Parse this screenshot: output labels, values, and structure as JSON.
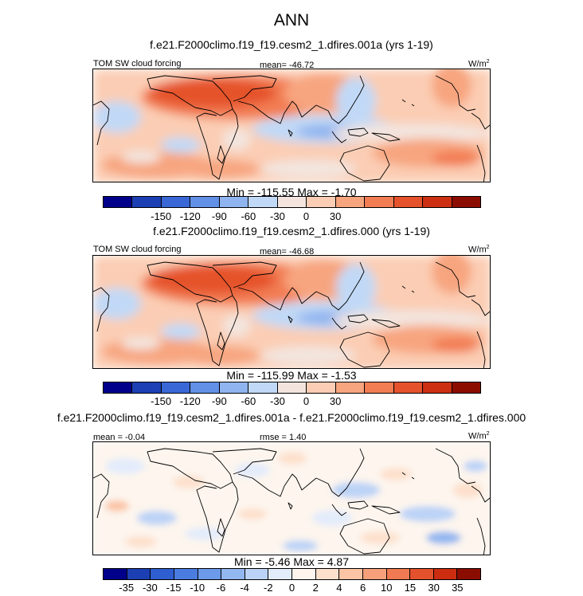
{
  "figure": {
    "title": "ANN"
  },
  "panels": [
    {
      "title": "f.e21.F2000climo.f19_f19.cesm2_1.dfires.001a (yrs 1-19)",
      "left_label": "TOM SW cloud forcing",
      "center_label": "mean= -46.72",
      "units": "W/m",
      "units_sup": "2",
      "minmax": "Min = -115.55 Max =  -1.70",
      "tick_labels": [
        "-150",
        "-120",
        "-90",
        "-60",
        "-30",
        "0",
        "30"
      ]
    },
    {
      "title": "f.e21.F2000climo.f19_f19.cesm2_1.dfires.000 (yrs 1-19)",
      "left_label": "TOM SW cloud forcing",
      "center_label": "mean= -46.68",
      "units": "W/m",
      "units_sup": "2",
      "minmax": "Min = -115.99 Max =  -1.53",
      "tick_labels": [
        "-150",
        "-120",
        "-90",
        "-60",
        "-30",
        "0",
        "30"
      ]
    },
    {
      "title": "f.e21.F2000climo.f19_f19.cesm2_1.dfires.001a - f.e21.F2000climo.f19_f19.cesm2_1.dfires.000",
      "left_label": "mean = -0.04",
      "center_label": "rmse =  1.40",
      "units": "W/m",
      "units_sup": "2",
      "minmax": "Min =  -5.46 Max =   4.87",
      "tick_labels": [
        "-35",
        "-30",
        "-15",
        "-10",
        "-6",
        "-4",
        "-2",
        "0",
        "2",
        "4",
        "6",
        "10",
        "15",
        "30",
        "35"
      ]
    }
  ],
  "colorbars": {
    "field": [
      "#00008b",
      "#1c3fb3",
      "#3a67d6",
      "#6190e6",
      "#90b4ef",
      "#c1d9f6",
      "#f3e5de",
      "#fbcdb4",
      "#f7a57f",
      "#f27d53",
      "#e5522c",
      "#cc2f12",
      "#8b0d00"
    ],
    "diff": [
      "#00008b",
      "#1c3fb3",
      "#2f5ed0",
      "#4b7ce0",
      "#6c99ea",
      "#93b7f0",
      "#bcd3f7",
      "#e3ecfb",
      "#fdf5ee",
      "#fde0cc",
      "#fbc4a5",
      "#f6a07b",
      "#f07a51",
      "#e3522d",
      "#cc2d11",
      "#8b0d00"
    ]
  }
}
